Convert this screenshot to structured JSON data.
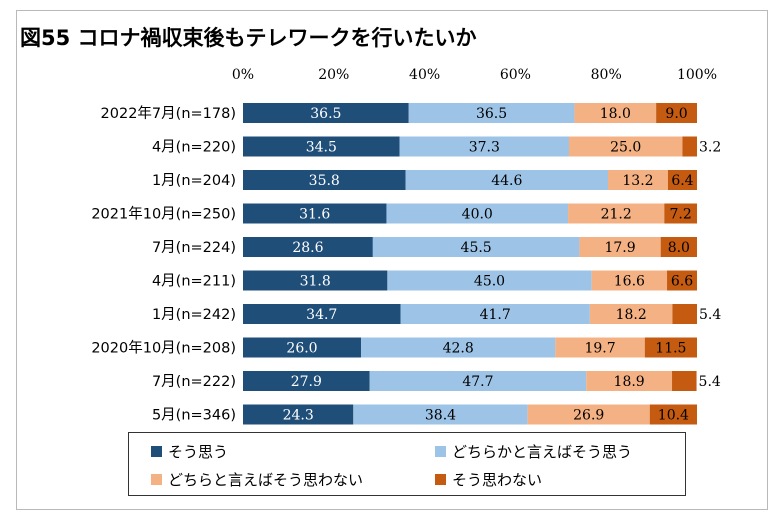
{
  "chart_data": {
    "type": "bar",
    "orientation": "horizontal",
    "stacked": "100%",
    "title": "図55 コロナ禍収束後もテレワークを行いたいか",
    "xlim": [
      0,
      100
    ],
    "x_ticks": [
      "0%",
      "20%",
      "40%",
      "60%",
      "80%",
      "100%"
    ],
    "categories": [
      "2022年7月(n=178)",
      "4月(n=220)",
      "1月(n=204)",
      "2021年10月(n=250)",
      "7月(n=224)",
      "4月(n=211)",
      "1月(n=242)",
      "2020年10月(n=208)",
      "7月(n=222)",
      "5月(n=346)"
    ],
    "series": [
      {
        "name": "そう思う",
        "color": "#1f4e79",
        "values": [
          36.5,
          34.5,
          35.8,
          31.6,
          28.6,
          31.8,
          34.7,
          26.0,
          27.9,
          24.3
        ],
        "labels": [
          "36.5",
          "34.5",
          "35.8",
          "31.6",
          "28.6",
          "31.8",
          "34.7",
          "26.0",
          "27.9",
          "24.3"
        ]
      },
      {
        "name": "どちらかと言えばそう思う",
        "color": "#9dc3e6",
        "values": [
          36.5,
          37.3,
          44.6,
          40.0,
          45.5,
          45.0,
          41.7,
          42.8,
          47.7,
          38.4
        ],
        "labels": [
          "36.5",
          "37.3",
          "44.6",
          "40.0",
          "45.5",
          "45.0",
          "41.7",
          "42.8",
          "47.7",
          "38.4"
        ]
      },
      {
        "name": "どちらと言えばそう思わない",
        "color": "#f4b183",
        "values": [
          18.0,
          25.0,
          13.2,
          21.2,
          17.9,
          16.6,
          18.2,
          19.7,
          18.9,
          26.9
        ],
        "labels": [
          "18.0",
          "25.0",
          "13.2",
          "21.2",
          "17.9",
          "16.6",
          "18.2",
          "19.7",
          "18.9",
          "26.9"
        ]
      },
      {
        "name": "そう思わない",
        "color": "#c55a11",
        "values": [
          9.0,
          3.2,
          6.4,
          7.2,
          8.0,
          6.6,
          5.4,
          11.5,
          5.4,
          10.4
        ],
        "labels": [
          "9.0",
          "3.2",
          "6.4",
          "7.2",
          "8.0",
          "6.6",
          "5.4",
          "11.5",
          "5.4",
          "10.4"
        ]
      }
    ],
    "legend_position": "bottom"
  }
}
